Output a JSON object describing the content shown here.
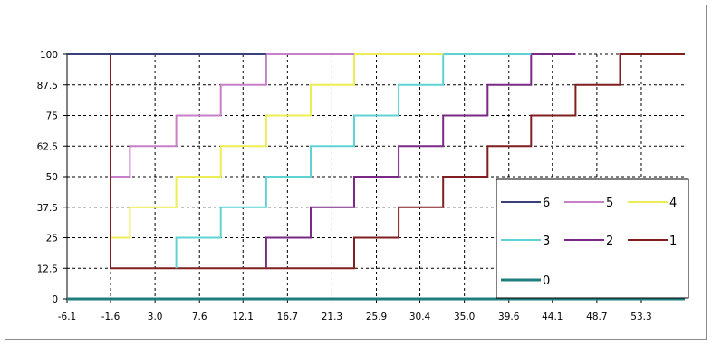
{
  "chart_data": {
    "type": "line",
    "step": true,
    "title": "",
    "xlabel": "",
    "ylabel": "",
    "xlim": [
      -6.1,
      57.8
    ],
    "ylim": [
      0,
      100
    ],
    "x_ticks": [
      "-6.1",
      "-1.6",
      "3.0",
      "7.6",
      "12.1",
      "16.7",
      "21.3",
      "25.9",
      "30.4",
      "35.0",
      "39.6",
      "44.1",
      "48.7",
      "53.3"
    ],
    "y_ticks": [
      "0",
      "12.5",
      "25",
      "37.5",
      "50",
      "62.5",
      "75",
      "87.5",
      "100"
    ],
    "grid": true,
    "legend_position": "bottom-right",
    "series": [
      {
        "name": "6",
        "color": "#3b3f7a",
        "x": [
          -6.1,
          14.5
        ],
        "y": [
          100,
          100
        ]
      },
      {
        "name": "5",
        "color": "#c77fc7",
        "x": [
          -1.6,
          0.4,
          0.4,
          5.2,
          5.2,
          9.8,
          9.8,
          14.5,
          14.5,
          23.6
        ],
        "y": [
          50,
          50,
          62.5,
          62.5,
          75,
          75,
          87.5,
          87.5,
          100,
          100
        ]
      },
      {
        "name": "4",
        "color": "#eded55",
        "x": [
          -1.6,
          0.4,
          0.4,
          5.2,
          5.2,
          9.8,
          9.8,
          14.5,
          14.5,
          19.1,
          19.1,
          23.6,
          23.6,
          32.8
        ],
        "y": [
          25,
          25,
          37.5,
          37.5,
          50,
          50,
          62.5,
          62.5,
          75,
          75,
          87.5,
          87.5,
          100,
          100
        ]
      },
      {
        "name": "3",
        "color": "#5fd3d3",
        "x": [
          5.2,
          5.2,
          9.8,
          9.8,
          14.5,
          14.5,
          19.1,
          19.1,
          23.6,
          23.6,
          28.2,
          28.2,
          32.8,
          32.8,
          41.9
        ],
        "y": [
          12.5,
          25,
          25,
          37.5,
          37.5,
          50,
          50,
          62.5,
          62.5,
          75,
          75,
          87.5,
          87.5,
          100,
          100
        ]
      },
      {
        "name": "2",
        "color": "#7a2a86",
        "x": [
          14.5,
          14.5,
          19.1,
          19.1,
          23.6,
          23.6,
          28.2,
          28.2,
          32.8,
          32.8,
          37.4,
          37.4,
          41.9,
          41.9,
          46.5
        ],
        "y": [
          12.5,
          25,
          25,
          37.5,
          37.5,
          50,
          50,
          62.5,
          62.5,
          75,
          75,
          87.5,
          87.5,
          100,
          100
        ]
      },
      {
        "name": "1",
        "color": "#7f1f1f",
        "x": [
          -6.1,
          -1.6,
          -1.6,
          23.6,
          23.6,
          28.2,
          28.2,
          32.8,
          32.8,
          37.4,
          37.4,
          41.9,
          41.9,
          46.5,
          46.5,
          51.1,
          51.1,
          57.8
        ],
        "y": [
          100,
          100,
          12.5,
          12.5,
          25,
          25,
          37.5,
          37.5,
          50,
          50,
          62.5,
          62.5,
          75,
          75,
          87.5,
          87.5,
          100,
          100
        ]
      },
      {
        "name": "0",
        "color": "#1f7d7d",
        "x": [
          -6.1,
          57.8
        ],
        "y": [
          0,
          0
        ]
      }
    ]
  }
}
